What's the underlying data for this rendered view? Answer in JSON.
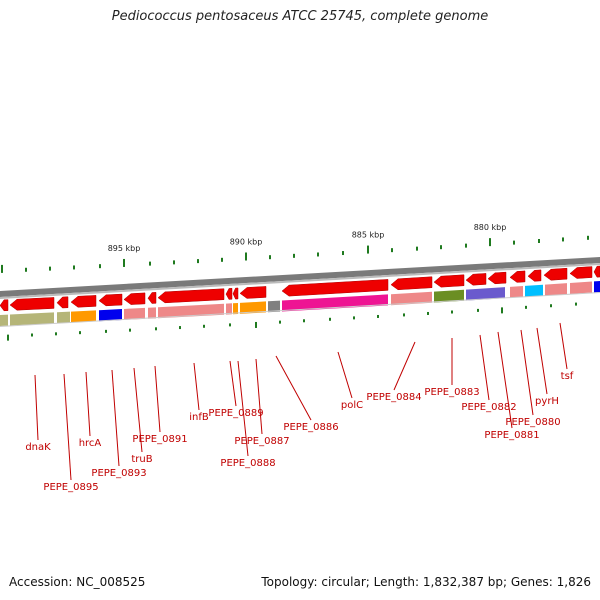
{
  "title": "Pediococcus pentosaceus ATCC 25745, complete genome",
  "footer": {
    "accession": "Accession: NC_008525",
    "summary": "Topology: circular; Length: 1,832,387 bp; Genes: 1,826"
  },
  "scale_labels": [
    "895 kbp",
    "890 kbp",
    "885 kbp",
    "880 kbp"
  ],
  "gene_labels": [
    "dnaK",
    "PEPE_0895",
    "hrcA",
    "PEPE_0893",
    "truB",
    "PEPE_0891",
    "infB",
    "PEPE_0889",
    "PEPE_0888",
    "PEPE_0887",
    "PEPE_0886",
    "polC",
    "PEPE_0884",
    "PEPE_0883",
    "PEPE_0882",
    "PEPE_0881",
    "PEPE_0880",
    "pyrH",
    "tsf"
  ],
  "colors": {
    "gene_red": "#ee0000",
    "label_red": "#c00000",
    "backbone": "#7a7a7a",
    "tick_green": "#1f7a1f",
    "cog_pink": "#ee8888",
    "cog_olive": "#b5b578",
    "cog_orange": "#ff9900",
    "cog_blue": "#0000ee",
    "cog_magenta": "#ee1493",
    "cog_green": "#6b8e23",
    "cog_slate": "#6a5acd",
    "cog_cyan": "#00bfff",
    "cog_gray": "#808080"
  }
}
